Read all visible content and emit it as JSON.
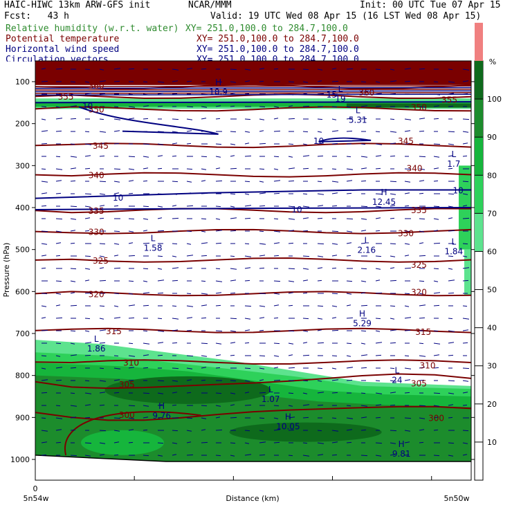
{
  "header": {
    "title_left": "HAIC-HIWC 13km ARW-GFS init",
    "org": "NCAR/MMM",
    "init": "Init: 00 UTC Tue 07 Apr 15",
    "fcst": "Fcst:   43 h",
    "valid": "Valid: 19 UTC Wed 08 Apr 15 (16 LST Wed 08 Apr 15)",
    "fields": [
      {
        "name": "Relative humidity (w.r.t. water)",
        "xy": "XY= 251.0,100.0 to 284.7,100.0",
        "color": "#2e8b2e"
      },
      {
        "name": "Potential temperature",
        "xy": "XY= 251.0,100.0 to 284.7,100.0",
        "color": "#7a0000"
      },
      {
        "name": "Horizontal wind speed",
        "xy": "XY= 251.0,100.0 to 284.7,100.0",
        "color": "#000080"
      },
      {
        "name": "Circulation vectors",
        "xy": "XY= 251.0,100.0 to 284.7,100.0",
        "color": "#000080"
      }
    ]
  },
  "chart_data": {
    "type": "heatmap",
    "ylabel": "Pressure (hPa)",
    "xlabel": "Distance (km)",
    "x_origin_label": "0",
    "x_left_label": "5n54w",
    "x_right_label": "5n50w",
    "yticks": [
      100,
      200,
      300,
      400,
      500,
      600,
      700,
      800,
      900,
      1000
    ],
    "ylim": [
      1050,
      75
    ],
    "colorbar": {
      "unit": "%",
      "levels": [
        10,
        20,
        30,
        40,
        50,
        60,
        70,
        80,
        90,
        100
      ],
      "bands": [
        {
          "from": 50,
          "to": 60,
          "color": "#5de38e"
        },
        {
          "from": 60,
          "to": 70,
          "color": "#2ed15a"
        },
        {
          "from": 70,
          "to": 80,
          "color": "#16b53c"
        },
        {
          "from": 80,
          "to": 90,
          "color": "#1c8c2c"
        },
        {
          "from": 90,
          "to": 100,
          "color": "#0e6a1c"
        },
        {
          "from": 100,
          "to": 110,
          "color": "#f08080"
        }
      ]
    },
    "theta_contours": [
      {
        "value": "300",
        "p": 888
      },
      {
        "value": "305",
        "p": 815
      },
      {
        "value": "310",
        "p": 768
      },
      {
        "value": "315",
        "p": 693
      },
      {
        "value": "320",
        "p": 605
      },
      {
        "value": "325",
        "p": 525
      },
      {
        "value": "330",
        "p": 457
      },
      {
        "value": "335",
        "p": 407
      },
      {
        "value": "340",
        "p": 322
      },
      {
        "value": "345",
        "p": 252
      },
      {
        "value": "350",
        "p": 165
      },
      {
        "value": "355",
        "p": 135
      },
      {
        "value": "360",
        "p": 112
      }
    ],
    "theta_labels": [
      {
        "text": "300",
        "x": 0.21,
        "p": 893
      },
      {
        "text": "300",
        "x": 0.92,
        "p": 900
      },
      {
        "text": "305",
        "x": 0.21,
        "p": 820
      },
      {
        "text": "305",
        "x": 0.88,
        "p": 818
      },
      {
        "text": "310",
        "x": 0.22,
        "p": 768
      },
      {
        "text": "310",
        "x": 0.9,
        "p": 775
      },
      {
        "text": "315",
        "x": 0.18,
        "p": 693
      },
      {
        "text": "315",
        "x": 0.89,
        "p": 695
      },
      {
        "text": "320",
        "x": 0.14,
        "p": 605
      },
      {
        "text": "320",
        "x": 0.88,
        "p": 600
      },
      {
        "text": "325",
        "x": 0.15,
        "p": 525
      },
      {
        "text": "325",
        "x": 0.88,
        "p": 535
      },
      {
        "text": "330",
        "x": 0.14,
        "p": 457
      },
      {
        "text": "330",
        "x": 0.85,
        "p": 460
      },
      {
        "text": "335",
        "x": 0.14,
        "p": 407
      },
      {
        "text": "335",
        "x": 0.88,
        "p": 405
      },
      {
        "text": "340",
        "x": 0.14,
        "p": 322
      },
      {
        "text": "340",
        "x": 0.87,
        "p": 305
      },
      {
        "text": "345",
        "x": 0.15,
        "p": 252
      },
      {
        "text": "345",
        "x": 0.85,
        "p": 240
      },
      {
        "text": "350",
        "x": 0.14,
        "p": 165
      },
      {
        "text": "350",
        "x": 0.88,
        "p": 160
      },
      {
        "text": "355",
        "x": 0.07,
        "p": 135
      },
      {
        "text": "355",
        "x": 0.95,
        "p": 142
      },
      {
        "text": "360",
        "x": 0.14,
        "p": 108
      },
      {
        "text": "360",
        "x": 0.76,
        "p": 125
      }
    ],
    "wind_labels": [
      {
        "text": "10",
        "x": 0.12,
        "p": 157
      },
      {
        "text": "10",
        "x": 0.65,
        "p": 240
      },
      {
        "text": "10",
        "x": 0.19,
        "p": 375
      },
      {
        "text": "10",
        "x": 0.6,
        "p": 403
      },
      {
        "text": "10",
        "x": 0.97,
        "p": 358
      },
      {
        "text": "15",
        "x": 0.68,
        "p": 130
      }
    ],
    "extrema": [
      {
        "kind": "L",
        "value": "5.31",
        "x": 0.74,
        "p": 175
      },
      {
        "kind": "L",
        "value": "1.7",
        "x": 0.96,
        "p": 280
      },
      {
        "kind": "H",
        "value": "12.45",
        "x": 0.8,
        "p": 370
      },
      {
        "kind": "L",
        "value": "1.58",
        "x": 0.27,
        "p": 480
      },
      {
        "kind": "L",
        "value": "2.16",
        "x": 0.76,
        "p": 485
      },
      {
        "kind": "L",
        "value": "1.84",
        "x": 0.96,
        "p": 488
      },
      {
        "kind": "H",
        "value": "5.29",
        "x": 0.75,
        "p": 660
      },
      {
        "kind": "L",
        "value": "1.86",
        "x": 0.14,
        "p": 720
      },
      {
        "kind": "L",
        "value": "24",
        "x": 0.83,
        "p": 795
      },
      {
        "kind": "L",
        "value": "1.07",
        "x": 0.54,
        "p": 840
      },
      {
        "kind": "H",
        "value": "9.76",
        "x": 0.29,
        "p": 880
      },
      {
        "kind": "H",
        "value": "10.05",
        "x": 0.58,
        "p": 905
      },
      {
        "kind": "H",
        "value": "9.81",
        "x": 0.84,
        "p": 970
      },
      {
        "kind": "H",
        "value": "18.9",
        "x": 0.42,
        "p": 108
      },
      {
        "kind": "L",
        "value": "19",
        "x": 0.7,
        "p": 125
      }
    ]
  }
}
